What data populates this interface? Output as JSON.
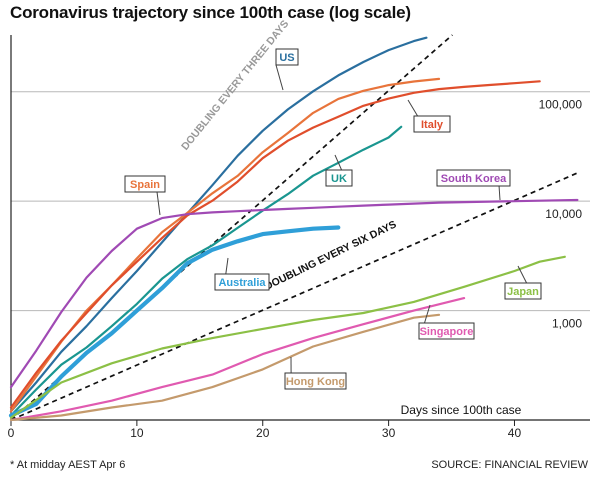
{
  "title": "Coronavirus trajectory since 100th case (log scale)",
  "footnote": "* At midday AEST Apr 6",
  "source": "SOURCE: FINANCIAL REVIEW",
  "chart_data": {
    "type": "line",
    "title": "Coronavirus trajectory since 100th case (log scale)",
    "xlabel": "Days since 100th case",
    "ylabel": "",
    "xlim": [
      0,
      46
    ],
    "ylim": [
      100,
      330000
    ],
    "yscale": "log",
    "x_ticks": [
      0,
      10,
      20,
      30,
      40
    ],
    "y_ticks": [
      1000,
      10000,
      100000
    ],
    "y_tick_labels": [
      "1,000",
      "10,000",
      "100,000"
    ],
    "grid": "horizontal",
    "series": [
      {
        "name": "US",
        "color": "#2a6f9f",
        "label_box": true,
        "x": [
          0,
          2,
          4,
          6,
          8,
          10,
          12,
          14,
          16,
          18,
          20,
          22,
          24,
          26,
          28,
          30,
          32,
          33
        ],
        "y": [
          120,
          220,
          420,
          720,
          1300,
          2300,
          4200,
          7700,
          14000,
          26000,
          44000,
          69000,
          101000,
          141000,
          187000,
          240000,
          290000,
          312000
        ]
      },
      {
        "name": "Spain",
        "color": "#e8743b",
        "label_box": true,
        "x": [
          0,
          2,
          4,
          6,
          8,
          10,
          12,
          14,
          16,
          18,
          20,
          22,
          24,
          26,
          28,
          30,
          32,
          34
        ],
        "y": [
          120,
          250,
          520,
          1000,
          1700,
          3000,
          5200,
          7800,
          11800,
          17000,
          28000,
          42000,
          64000,
          86000,
          102000,
          115000,
          124000,
          131000
        ]
      },
      {
        "name": "Italy",
        "color": "#e04e2c",
        "label_box": true,
        "x": [
          0,
          2,
          4,
          6,
          8,
          10,
          12,
          14,
          16,
          18,
          20,
          22,
          24,
          26,
          28,
          30,
          32,
          34,
          36,
          38,
          40,
          42
        ],
        "y": [
          130,
          270,
          530,
          950,
          1700,
          2800,
          4600,
          7400,
          10100,
          15100,
          24700,
          35700,
          47000,
          59100,
          74400,
          86500,
          97700,
          105800,
          110600,
          115200,
          119800,
          124600
        ]
      },
      {
        "name": "UK",
        "color": "#1a9690",
        "label_box": true,
        "x": [
          0,
          2,
          4,
          6,
          8,
          10,
          12,
          14,
          16,
          18,
          20,
          22,
          24,
          26,
          28,
          30,
          31
        ],
        "y": [
          110,
          190,
          320,
          460,
          720,
          1150,
          1950,
          2950,
          3950,
          5700,
          8200,
          11600,
          17100,
          22400,
          29500,
          38200,
          47800
        ]
      },
      {
        "name": "South Korea",
        "color": "#a04ab4",
        "label_box": true,
        "x": [
          0,
          2,
          4,
          6,
          8,
          10,
          12,
          14,
          16,
          18,
          20,
          22,
          24,
          26,
          28,
          30,
          32,
          34,
          36,
          38,
          40,
          42,
          44,
          45
        ],
        "y": [
          200,
          430,
          970,
          2000,
          3500,
          5600,
          7000,
          7600,
          7900,
          8100,
          8300,
          8500,
          8700,
          8900,
          9100,
          9300,
          9500,
          9700,
          9800,
          9900,
          10000,
          10100,
          10200,
          10250
        ]
      },
      {
        "name": "Australia",
        "color": "#2f9fd8",
        "label_box": true,
        "highlight": true,
        "x": [
          0,
          2,
          4,
          6,
          8,
          10,
          12,
          14,
          16,
          18,
          20,
          22,
          24,
          26
        ],
        "y": [
          110,
          140,
          250,
          410,
          620,
          1000,
          1600,
          2700,
          3600,
          4300,
          5000,
          5300,
          5600,
          5750
        ]
      },
      {
        "name": "Japan",
        "color": "#8cc046",
        "label_box": true,
        "x": [
          0,
          4,
          8,
          12,
          16,
          20,
          24,
          28,
          32,
          36,
          40,
          42,
          44
        ],
        "y": [
          105,
          220,
          330,
          450,
          560,
          680,
          820,
          950,
          1200,
          1650,
          2300,
          2800,
          3100
        ]
      },
      {
        "name": "Singapore",
        "color": "#e05ab0",
        "label_box": true,
        "x": [
          0,
          4,
          8,
          12,
          16,
          20,
          24,
          28,
          32,
          36
        ],
        "y": [
          100,
          120,
          150,
          200,
          260,
          400,
          560,
          750,
          1000,
          1300
        ]
      },
      {
        "name": "Hong Kong",
        "color": "#c49a6c",
        "label_box": true,
        "x": [
          0,
          4,
          8,
          12,
          16,
          20,
          24,
          28,
          32,
          34
        ],
        "y": [
          100,
          110,
          130,
          150,
          200,
          290,
          470,
          640,
          860,
          915
        ]
      }
    ],
    "reference_lines": [
      {
        "label": "DOUBLING EVERY THREE DAYS",
        "doubling_days": 3,
        "style": "dashed"
      },
      {
        "label": "DOUBLING EVERY SIX DAYS",
        "doubling_days": 6,
        "style": "dashed"
      }
    ]
  }
}
